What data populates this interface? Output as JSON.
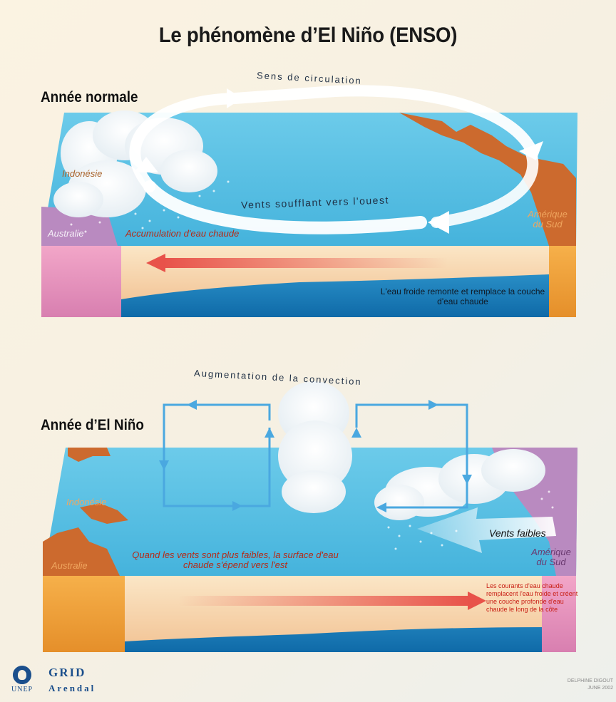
{
  "title": "Le phénomène d’El Niño (ENSO)",
  "panels": {
    "normal": {
      "label": "Année normale",
      "circulation_label": "Sens de circulation",
      "winds_label": "Vents soufflant vers l'ouest",
      "place_left": "Indonésie",
      "place_australia": "Australie",
      "place_right": "Amérique du Sud",
      "warm_water": "Accumulation d'eau chaude",
      "upwelling": "L'eau froide remonte et remplace la couche d'eau chaude"
    },
    "elnino": {
      "label": "Année d’El Niño",
      "convection_label": "Augmentation de la convection",
      "winds_label": "Vents faibles",
      "place_left": "Indonésie",
      "place_australia": "Australie",
      "place_right": "Amérique du Sud",
      "warm_spread": "Quand les vents sont plus faibles, la surface d'eau chaude s'épend vers l'est",
      "currents": "Les courants d'eau chaude remplacent l'eau froide et créent une couche profonde d'eau chaude le long de la côte"
    }
  },
  "logos": {
    "unep": "UNEP",
    "grid": "GRID",
    "arendal": "Arendal"
  },
  "credit": {
    "author": "DELPHINE DIGOUT",
    "date": "JUNE 2002"
  },
  "colors": {
    "ocean": "#5cc0e0",
    "land": "#cc6a2e",
    "australia": "#b98ac0",
    "warm_layer": "#f7c9a0",
    "cold_layer": "#1a8bc8",
    "arrow_red": "#e8524a",
    "convection_blue": "#4aa8e0"
  }
}
